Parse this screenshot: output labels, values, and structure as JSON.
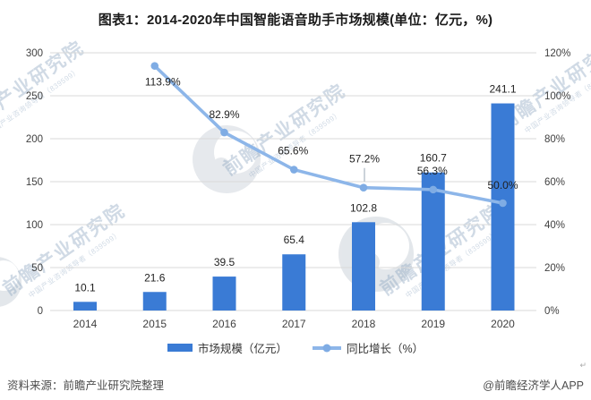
{
  "title": "图表1：2014-2020年中国智能语音助手市场规模(单位：亿元，%)",
  "chart_data": {
    "type": "combo",
    "title": "图表1：2014-2020年中国智能语音助手市场规模(单位：亿元，%)",
    "categories": [
      "2014",
      "2015",
      "2016",
      "2017",
      "2018",
      "2019",
      "2020"
    ],
    "series": [
      {
        "name": "市场规模（亿元）",
        "type": "bar",
        "axis": "left",
        "color": "#3A7BD5",
        "values": [
          10.1,
          21.6,
          39.5,
          65.4,
          102.8,
          160.7,
          241.1
        ]
      },
      {
        "name": "同比增长（%）",
        "type": "line",
        "axis": "right",
        "color": "#8DB6E9",
        "marker_color": "#7FACE4",
        "values": [
          null,
          113.9,
          82.9,
          65.6,
          57.2,
          56.3,
          50.0
        ]
      }
    ],
    "left_axis": {
      "min": 0,
      "max": 300,
      "step": 50,
      "ticks": [
        "0",
        "50",
        "100",
        "150",
        "200",
        "250",
        "300"
      ]
    },
    "right_axis": {
      "min": 0,
      "max": 120,
      "step": 20,
      "ticks": [
        "0%",
        "20%",
        "40%",
        "60%",
        "80%",
        "100%",
        "120%"
      ]
    },
    "grid": true,
    "gridline_color": "#D9D9D9",
    "legend_position": "bottom"
  },
  "legend": {
    "bar_label": "市场规模（亿元）",
    "line_label": "同比增长（%）"
  },
  "footer": {
    "source": "资料来源：前瞻产业研究院整理",
    "credit": "@前瞻经济学人APP",
    "return_mark": "↵"
  },
  "watermark": {
    "text": "前瞻产业研究院",
    "subtext": "中国产业咨询领导者（839599）"
  }
}
